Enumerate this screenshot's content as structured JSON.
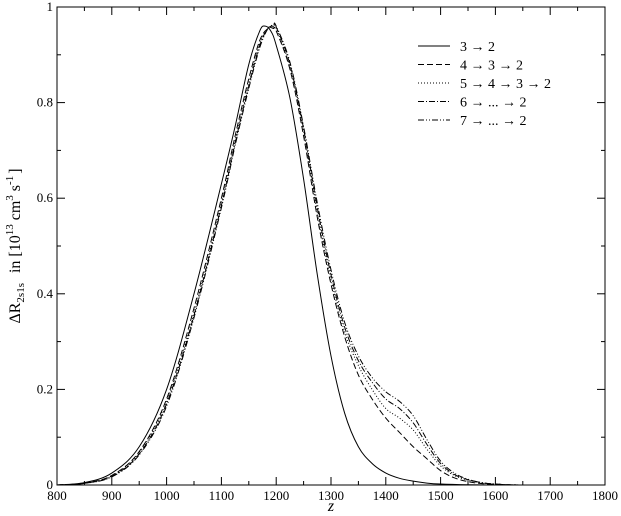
{
  "chart_data": {
    "type": "line",
    "xlabel": "z",
    "ylabel": "ΔR_2s1s in [10^13 cm^3 s^-1]",
    "ylabel_parts": {
      "main": "ΔR",
      "sub": "2s1s",
      "in": "in [10",
      "exp13": "13",
      "cm": "cm",
      "exp3": "3",
      "s": "s",
      "expm1": "-1",
      "close": "]"
    },
    "xlim": [
      800,
      1800
    ],
    "ylim": [
      0,
      1
    ],
    "xticks": [
      800,
      900,
      1000,
      1100,
      1200,
      1300,
      1400,
      1500,
      1600,
      1700,
      1800
    ],
    "yticks": [
      0,
      0.2,
      0.4,
      0.6,
      0.8,
      1
    ],
    "ytick_labels": [
      "0",
      "0.2",
      "0.4",
      "0.6",
      "0.8",
      "1"
    ],
    "grid": false,
    "legend_position": "top-right",
    "series": [
      {
        "name": "3 → 2",
        "dash": "solid",
        "x": [
          800,
          850,
          900,
          950,
          1000,
          1050,
          1100,
          1125,
          1150,
          1170,
          1180,
          1190,
          1200,
          1225,
          1250,
          1275,
          1300,
          1325,
          1350,
          1375,
          1400,
          1425,
          1450,
          1475,
          1500,
          1550,
          1600,
          1650,
          1700,
          1800
        ],
        "y": [
          0.0,
          0.005,
          0.025,
          0.08,
          0.2,
          0.4,
          0.63,
          0.75,
          0.88,
          0.95,
          0.96,
          0.95,
          0.92,
          0.81,
          0.64,
          0.44,
          0.27,
          0.15,
          0.08,
          0.045,
          0.025,
          0.014,
          0.008,
          0.004,
          0.002,
          0.0005,
          0.0,
          0.0,
          0.0,
          0.0
        ]
      },
      {
        "name": "4 → 3 → 2",
        "dash": "dashed",
        "x": [
          800,
          850,
          900,
          950,
          1000,
          1050,
          1100,
          1125,
          1150,
          1170,
          1185,
          1195,
          1200,
          1225,
          1250,
          1275,
          1300,
          1325,
          1350,
          1375,
          1400,
          1425,
          1450,
          1475,
          1500,
          1525,
          1550,
          1575,
          1600,
          1650,
          1800
        ],
        "y": [
          0.0,
          0.004,
          0.02,
          0.07,
          0.18,
          0.37,
          0.6,
          0.73,
          0.85,
          0.93,
          0.955,
          0.955,
          0.95,
          0.87,
          0.73,
          0.56,
          0.42,
          0.31,
          0.23,
          0.18,
          0.14,
          0.11,
          0.08,
          0.055,
          0.03,
          0.015,
          0.007,
          0.003,
          0.0015,
          0.0,
          0.0
        ]
      },
      {
        "name": "5 → 4 → 3 → 2",
        "dash": "dotted",
        "x": [
          800,
          850,
          900,
          950,
          1000,
          1050,
          1100,
          1125,
          1150,
          1170,
          1185,
          1195,
          1200,
          1225,
          1250,
          1275,
          1300,
          1325,
          1350,
          1375,
          1400,
          1425,
          1450,
          1475,
          1500,
          1525,
          1550,
          1575,
          1600,
          1650,
          1800
        ],
        "y": [
          0.0,
          0.004,
          0.019,
          0.068,
          0.175,
          0.36,
          0.59,
          0.72,
          0.84,
          0.925,
          0.955,
          0.958,
          0.955,
          0.875,
          0.74,
          0.57,
          0.43,
          0.32,
          0.25,
          0.2,
          0.16,
          0.14,
          0.115,
          0.075,
          0.04,
          0.02,
          0.01,
          0.004,
          0.002,
          0.0,
          0.0
        ]
      },
      {
        "name": "6 → ... → 2",
        "dash": "dash-dot",
        "x": [
          800,
          850,
          900,
          950,
          1000,
          1050,
          1100,
          1125,
          1150,
          1170,
          1185,
          1195,
          1200,
          1225,
          1250,
          1275,
          1300,
          1325,
          1350,
          1375,
          1400,
          1425,
          1450,
          1475,
          1500,
          1525,
          1550,
          1575,
          1600,
          1650,
          1800
        ],
        "y": [
          0.0,
          0.0035,
          0.018,
          0.065,
          0.17,
          0.355,
          0.585,
          0.715,
          0.835,
          0.92,
          0.955,
          0.96,
          0.958,
          0.88,
          0.745,
          0.58,
          0.44,
          0.33,
          0.26,
          0.215,
          0.18,
          0.16,
          0.13,
          0.085,
          0.045,
          0.022,
          0.011,
          0.005,
          0.002,
          0.0,
          0.0
        ]
      },
      {
        "name": "7 → ... → 2",
        "dash": "dash-dot-dot",
        "x": [
          800,
          850,
          900,
          950,
          1000,
          1050,
          1100,
          1125,
          1150,
          1170,
          1185,
          1195,
          1200,
          1225,
          1250,
          1275,
          1300,
          1325,
          1350,
          1375,
          1400,
          1425,
          1450,
          1475,
          1500,
          1525,
          1550,
          1575,
          1600,
          1650,
          1800
        ],
        "y": [
          0.0,
          0.0035,
          0.017,
          0.063,
          0.165,
          0.35,
          0.58,
          0.71,
          0.83,
          0.915,
          0.955,
          0.962,
          0.96,
          0.885,
          0.75,
          0.59,
          0.45,
          0.34,
          0.27,
          0.225,
          0.195,
          0.175,
          0.145,
          0.095,
          0.05,
          0.025,
          0.012,
          0.005,
          0.002,
          0.0,
          0.0
        ]
      }
    ]
  }
}
